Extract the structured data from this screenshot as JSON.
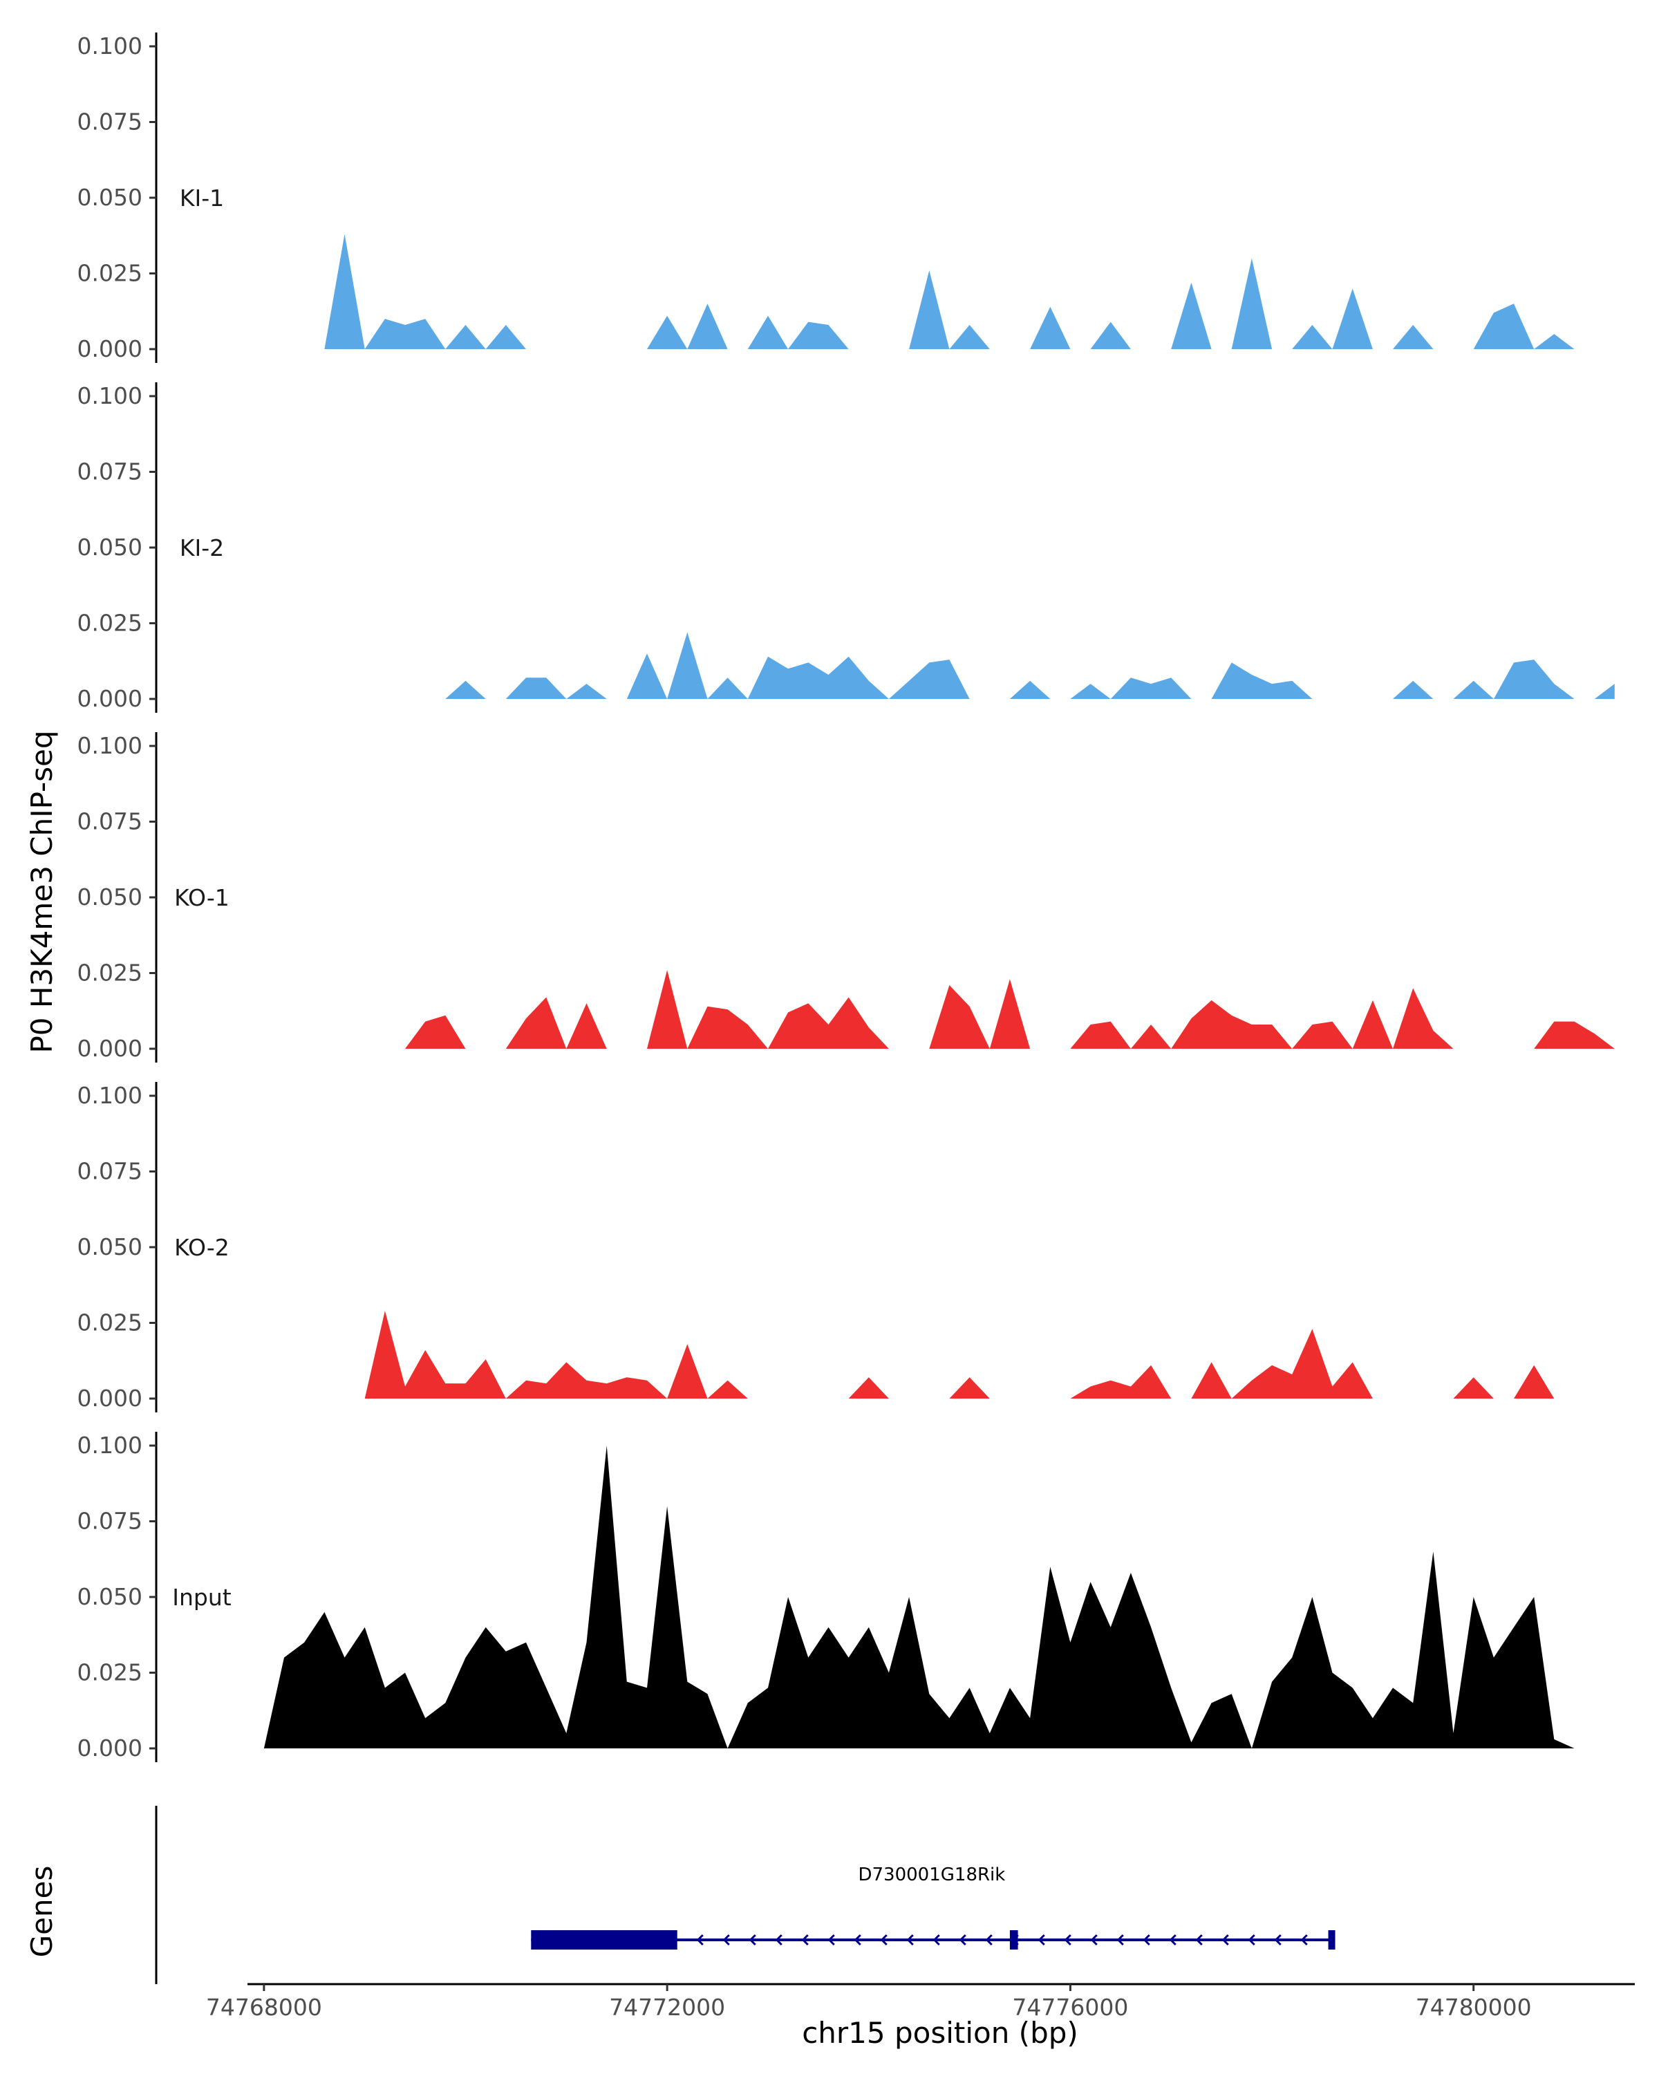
{
  "chart_data": {
    "type": "area",
    "ylabel": "P0 H3K4me3 ChIP-seq",
    "xlabel": "chr15 position (bp)",
    "xlim": [
      74767850,
      74781600
    ],
    "ylim": [
      0,
      0.1
    ],
    "y_ticks": [
      0.0,
      0.025,
      0.05,
      0.075,
      0.1
    ],
    "y_tick_labels": [
      "0.000",
      "0.025",
      "0.050",
      "0.075",
      "0.100"
    ],
    "x_ticks": [
      74768000,
      74772000,
      74776000,
      74780000
    ],
    "x_tick_labels": [
      "74768000",
      "74772000",
      "74776000",
      "74780000"
    ],
    "series": [
      {
        "name": "KI-1",
        "color": "#5aa9e6",
        "x": [
          74768000,
          74768200,
          74768400,
          74768600,
          74768800,
          74769000,
          74769200,
          74769400,
          74769600,
          74769800,
          74770000,
          74770200,
          74770400,
          74770600,
          74770800,
          74771000,
          74771200,
          74771400,
          74771600,
          74771800,
          74772000,
          74772200,
          74772400,
          74772600,
          74772800,
          74773000,
          74773200,
          74773400,
          74773600,
          74773800,
          74774000,
          74774200,
          74774400,
          74774600,
          74774800,
          74775000,
          74775200,
          74775400,
          74775600,
          74775800,
          74776000,
          74776200,
          74776400,
          74776600,
          74776800,
          74777000,
          74777200,
          74777400,
          74777600,
          74777800,
          74778000,
          74778200,
          74778400,
          74778600,
          74778800,
          74779000,
          74779200,
          74779400,
          74779600,
          74779800,
          74780000,
          74780200,
          74780400,
          74780600,
          74780800,
          74781000,
          74781200,
          74781400
        ],
        "values": [
          0,
          0,
          0,
          0,
          0.038,
          0,
          0.01,
          0.008,
          0.01,
          0,
          0.008,
          0,
          0.008,
          0,
          0,
          0,
          0,
          0,
          0,
          0,
          0.011,
          0,
          0.015,
          0,
          0,
          0.011,
          0,
          0.009,
          0.008,
          0,
          0,
          0,
          0,
          0.026,
          0,
          0.008,
          0,
          0,
          0,
          0.014,
          0,
          0,
          0.009,
          0,
          0,
          0,
          0.022,
          0,
          0,
          0.03,
          0,
          0,
          0.008,
          0,
          0.02,
          0,
          0,
          0.008,
          0,
          0,
          0,
          0.012,
          0.015,
          0,
          0.005,
          0,
          0,
          0
        ]
      },
      {
        "name": "KI-2",
        "color": "#5aa9e6",
        "x": [
          74768000,
          74768200,
          74768400,
          74768600,
          74768800,
          74769000,
          74769200,
          74769400,
          74769600,
          74769800,
          74770000,
          74770200,
          74770400,
          74770600,
          74770800,
          74771000,
          74771200,
          74771400,
          74771600,
          74771800,
          74772000,
          74772200,
          74772400,
          74772600,
          74772800,
          74773000,
          74773200,
          74773400,
          74773600,
          74773800,
          74774000,
          74774200,
          74774400,
          74774600,
          74774800,
          74775000,
          74775200,
          74775400,
          74775600,
          74775800,
          74776000,
          74776200,
          74776400,
          74776600,
          74776800,
          74777000,
          74777200,
          74777400,
          74777600,
          74777800,
          74778000,
          74778200,
          74778400,
          74778600,
          74778800,
          74779000,
          74779200,
          74779400,
          74779600,
          74779800,
          74780000,
          74780200,
          74780400,
          74780600,
          74780800,
          74781000,
          74781200,
          74781400
        ],
        "values": [
          0,
          0,
          0,
          0,
          0,
          0,
          0,
          0,
          0,
          0,
          0.006,
          0,
          0,
          0.007,
          0.007,
          0,
          0.005,
          0,
          0,
          0.015,
          0,
          0.022,
          0,
          0.007,
          0,
          0.014,
          0.01,
          0.012,
          0.008,
          0.014,
          0.006,
          0,
          0.006,
          0.012,
          0.013,
          0,
          0,
          0,
          0.006,
          0,
          0,
          0.005,
          0,
          0.007,
          0.005,
          0.007,
          0,
          0,
          0.012,
          0.008,
          0.005,
          0.006,
          0,
          0,
          0,
          0,
          0,
          0.006,
          0,
          0,
          0.006,
          0,
          0.012,
          0.013,
          0.005,
          0,
          0,
          0.005
        ]
      },
      {
        "name": "KO-1",
        "color": "#ee2e2e",
        "x": [
          74768000,
          74768200,
          74768400,
          74768600,
          74768800,
          74769000,
          74769200,
          74769400,
          74769600,
          74769800,
          74770000,
          74770200,
          74770400,
          74770600,
          74770800,
          74771000,
          74771200,
          74771400,
          74771600,
          74771800,
          74772000,
          74772200,
          74772400,
          74772600,
          74772800,
          74773000,
          74773200,
          74773400,
          74773600,
          74773800,
          74774000,
          74774200,
          74774400,
          74774600,
          74774800,
          74775000,
          74775200,
          74775400,
          74775600,
          74775800,
          74776000,
          74776200,
          74776400,
          74776600,
          74776800,
          74777000,
          74777200,
          74777400,
          74777600,
          74777800,
          74778000,
          74778200,
          74778400,
          74778600,
          74778800,
          74779000,
          74779200,
          74779400,
          74779600,
          74779800,
          74780000,
          74780200,
          74780400,
          74780600,
          74780800,
          74781000,
          74781200,
          74781400
        ],
        "values": [
          0,
          0,
          0,
          0,
          0,
          0,
          0,
          0,
          0.009,
          0.011,
          0,
          0,
          0,
          0.01,
          0.017,
          0,
          0.015,
          0,
          0,
          0,
          0.026,
          0,
          0.014,
          0.013,
          0.008,
          0,
          0.012,
          0.015,
          0.008,
          0.017,
          0.007,
          0,
          0,
          0,
          0.021,
          0.014,
          0,
          0.023,
          0,
          0,
          0,
          0.008,
          0.009,
          0,
          0.008,
          0,
          0.01,
          0.016,
          0.011,
          0.008,
          0.008,
          0,
          0.008,
          0.009,
          0,
          0.016,
          0,
          0.02,
          0.006,
          0,
          0,
          0,
          0,
          0,
          0.009,
          0.009,
          0.005,
          0
        ]
      },
      {
        "name": "KO-2",
        "color": "#ee2e2e",
        "x": [
          74768000,
          74768200,
          74768400,
          74768600,
          74768800,
          74769000,
          74769200,
          74769400,
          74769600,
          74769800,
          74770000,
          74770200,
          74770400,
          74770600,
          74770800,
          74771000,
          74771200,
          74771400,
          74771600,
          74771800,
          74772000,
          74772200,
          74772400,
          74772600,
          74772800,
          74773000,
          74773200,
          74773400,
          74773600,
          74773800,
          74774000,
          74774200,
          74774400,
          74774600,
          74774800,
          74775000,
          74775200,
          74775400,
          74775600,
          74775800,
          74776000,
          74776200,
          74776400,
          74776600,
          74776800,
          74777000,
          74777200,
          74777400,
          74777600,
          74777800,
          74778000,
          74778200,
          74778400,
          74778600,
          74778800,
          74779000,
          74779200,
          74779400,
          74779600,
          74779800,
          74780000,
          74780200,
          74780400,
          74780600,
          74780800,
          74781000,
          74781200,
          74781400
        ],
        "values": [
          0,
          0,
          0,
          0,
          0,
          0,
          0.029,
          0.004,
          0.016,
          0.005,
          0.005,
          0.013,
          0,
          0.006,
          0.005,
          0.012,
          0.006,
          0.005,
          0.007,
          0.006,
          0,
          0.018,
          0,
          0.006,
          0,
          0,
          0,
          0,
          0,
          0,
          0.007,
          0,
          0,
          0,
          0,
          0.007,
          0,
          0,
          0,
          0,
          0,
          0.004,
          0.006,
          0.004,
          0.011,
          0,
          0,
          0.012,
          0,
          0.006,
          0.011,
          0.008,
          0.023,
          0.004,
          0.012,
          0,
          0,
          0,
          0,
          0,
          0.007,
          0,
          0,
          0.011,
          0,
          0,
          0,
          0
        ]
      },
      {
        "name": "Input",
        "color": "#000000",
        "x": [
          74768000,
          74768200,
          74768400,
          74768600,
          74768800,
          74769000,
          74769200,
          74769400,
          74769600,
          74769800,
          74770000,
          74770200,
          74770400,
          74770600,
          74770800,
          74771000,
          74771200,
          74771400,
          74771600,
          74771800,
          74772000,
          74772200,
          74772400,
          74772600,
          74772800,
          74773000,
          74773200,
          74773400,
          74773600,
          74773800,
          74774000,
          74774200,
          74774400,
          74774600,
          74774800,
          74775000,
          74775200,
          74775400,
          74775600,
          74775800,
          74776000,
          74776200,
          74776400,
          74776600,
          74776800,
          74777000,
          74777200,
          74777400,
          74777600,
          74777800,
          74778000,
          74778200,
          74778400,
          74778600,
          74778800,
          74779000,
          74779200,
          74779400,
          74779600,
          74779800,
          74780000,
          74780200,
          74780400,
          74780600,
          74780800,
          74781000,
          74781200,
          74781400
        ],
        "values": [
          0,
          0.03,
          0.035,
          0.045,
          0.03,
          0.04,
          0.02,
          0.025,
          0.01,
          0.015,
          0.03,
          0.04,
          0.032,
          0.035,
          0.02,
          0.005,
          0.035,
          0.1,
          0.022,
          0.02,
          0.08,
          0.022,
          0.018,
          0,
          0.015,
          0.02,
          0.05,
          0.03,
          0.04,
          0.03,
          0.04,
          0.025,
          0.05,
          0.018,
          0.01,
          0.02,
          0.005,
          0.02,
          0.01,
          0.06,
          0.035,
          0.055,
          0.04,
          0.058,
          0.04,
          0.02,
          0.002,
          0.015,
          0.018,
          0,
          0.022,
          0.03,
          0.05,
          0.025,
          0.02,
          0.01,
          0.02,
          0.015,
          0.065,
          0.005,
          0.05,
          0.03,
          0.04,
          0.05,
          0.003,
          0,
          0,
          0
        ]
      }
    ],
    "genes": {
      "title": "Genes",
      "items": [
        {
          "name": "D730001G18Rik",
          "strand": "-",
          "start": 74770650,
          "end": 74778600,
          "thick_segments": [
            [
              74770650,
              74772100
            ],
            [
              74775400,
              74775480
            ]
          ],
          "color": "#00008b"
        }
      ]
    }
  }
}
